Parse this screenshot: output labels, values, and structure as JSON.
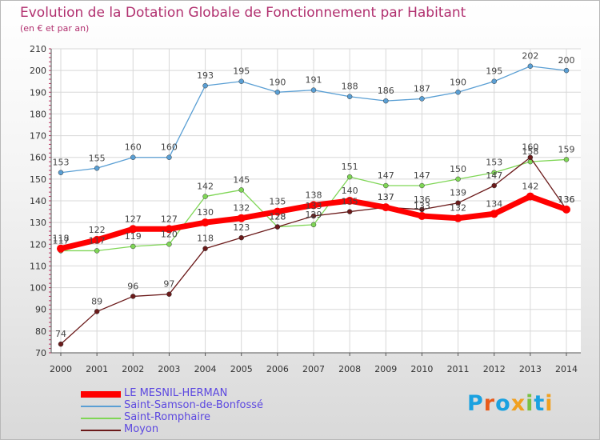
{
  "title": "Evolution de la Dotation Globale de Fonctionnement par Habitant",
  "subtitle": "(en € et par an)",
  "logo": {
    "text": "Proxiti",
    "letter_colors": [
      "#1aa1e0",
      "#e85a1a",
      "#1aa1e0",
      "#f0a020",
      "#7ac143",
      "#1aa1e0",
      "#f0a020"
    ]
  },
  "chart_data": {
    "type": "line",
    "title": "Evolution de la Dotation Globale de Fonctionnement par Habitant",
    "subtitle": "(en € et par an)",
    "xlabel": "",
    "ylabel": "",
    "ylim": [
      70,
      210
    ],
    "yticks": [
      70,
      80,
      90,
      100,
      110,
      120,
      130,
      140,
      150,
      160,
      170,
      180,
      190,
      200,
      210
    ],
    "x": [
      "2000",
      "2001",
      "2002",
      "2003",
      "2004",
      "2005",
      "2006",
      "2007",
      "2008",
      "2009",
      "2010",
      "2011",
      "2012",
      "2013",
      "2014"
    ],
    "grid": true,
    "series": [
      {
        "name": "Saint-Samson-de-Bonfossé",
        "color": "#5a9fd4",
        "line_width": 1.3,
        "values": [
          153,
          155,
          160,
          160,
          193,
          195,
          190,
          191,
          188,
          186,
          187,
          190,
          195,
          202,
          200
        ],
        "labels": [
          "153",
          "155",
          "160",
          "160",
          "193",
          "195",
          "190",
          "191",
          "188",
          "186",
          "187",
          "190",
          "195",
          "202",
          "200"
        ]
      },
      {
        "name": "Saint-Romphaire",
        "color": "#7fd656",
        "line_width": 1.3,
        "values": [
          117,
          117,
          119,
          120,
          142,
          145,
          128,
          129,
          151,
          147,
          147,
          150,
          153,
          158,
          159
        ],
        "labels": [
          "117",
          "117",
          "119",
          "120",
          "142",
          "145",
          "128",
          "129",
          "151",
          "147",
          "147",
          "150",
          "153",
          "158",
          "159"
        ]
      },
      {
        "name": "Moyon",
        "color": "#6b1a1a",
        "line_width": 1.3,
        "values": [
          74,
          89,
          96,
          97,
          118,
          123,
          128,
          133,
          135,
          137,
          136,
          139,
          147,
          160,
          136
        ],
        "labels": [
          "74",
          "89",
          "96",
          "97",
          "118",
          "123",
          "128",
          "133",
          "135",
          "137",
          "136",
          "139",
          "147",
          "160",
          "136"
        ]
      },
      {
        "name": "LE MESNIL-HERMAN",
        "color": "#ff0000",
        "line_width": 7,
        "values": [
          118,
          122,
          127,
          127,
          130,
          132,
          135,
          138,
          140,
          137,
          133,
          132,
          134,
          142,
          136
        ],
        "labels": [
          "118",
          "122",
          "127",
          "127",
          "130",
          "132",
          "135",
          "138",
          "140",
          "137",
          "133",
          "132",
          "134",
          "142",
          "136"
        ]
      }
    ],
    "legend": [
      {
        "name": "LE MESNIL-HERMAN",
        "color": "#ff0000"
      },
      {
        "name": "Saint-Samson-de-Bonfossé",
        "color": "#5a9fd4"
      },
      {
        "name": "Saint-Romphaire",
        "color": "#7fd656"
      },
      {
        "name": "Moyon",
        "color": "#6b1a1a"
      }
    ]
  }
}
